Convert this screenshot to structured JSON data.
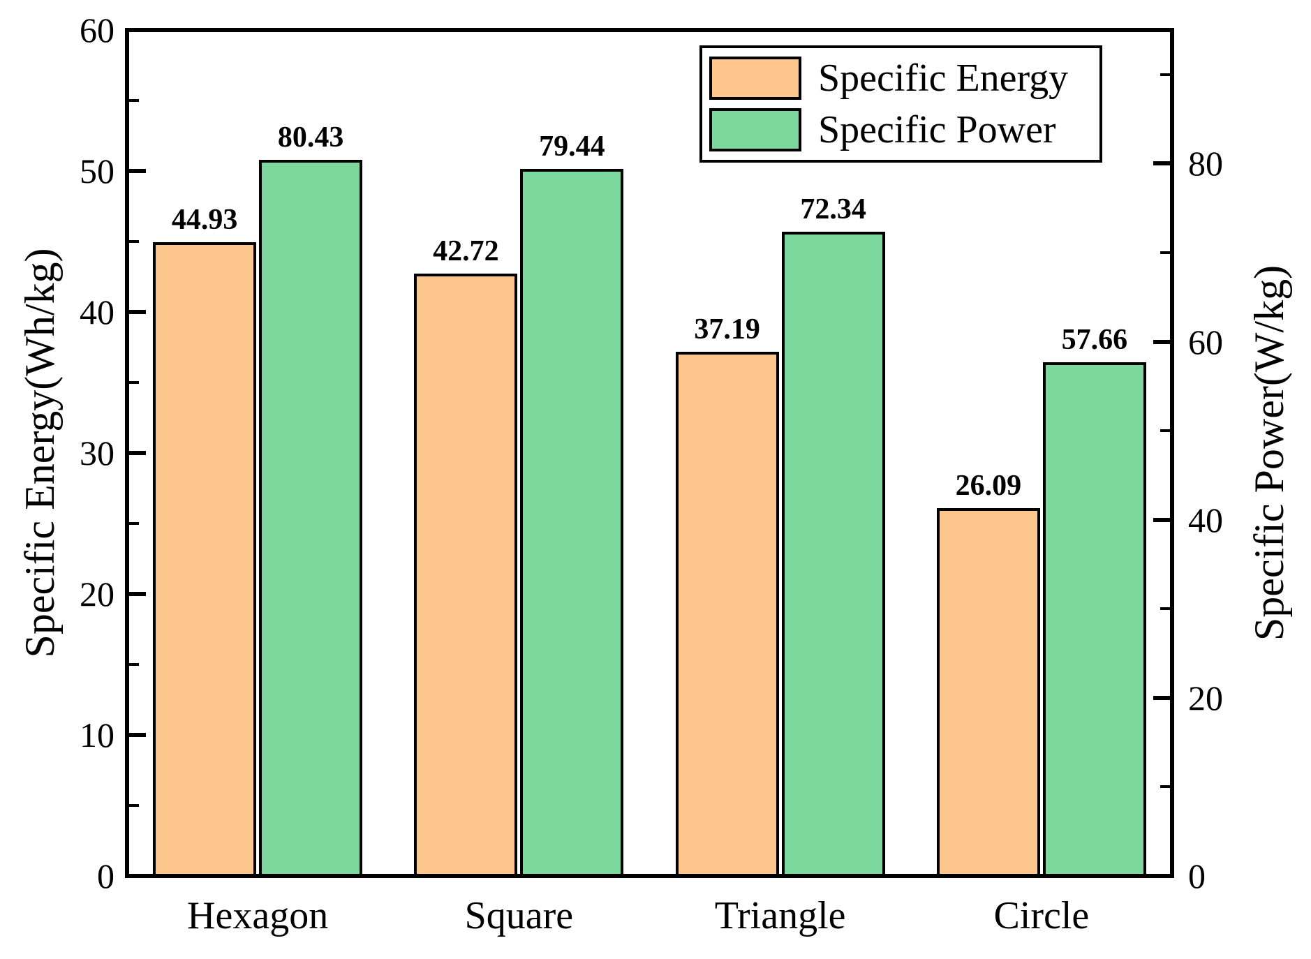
{
  "chart_data": {
    "type": "bar",
    "title": "",
    "categories": [
      "Hexagon",
      "Square",
      "Triangle",
      "Circle"
    ],
    "series": [
      {
        "name": "Specific Energy",
        "axis": "left",
        "color": "#FDC68D",
        "values": [
          44.93,
          42.72,
          37.19,
          26.09
        ]
      },
      {
        "name": "Specific Power",
        "axis": "right",
        "color": "#7CD89D",
        "values": [
          80.43,
          79.44,
          72.34,
          57.66
        ]
      }
    ],
    "left_axis": {
      "label": "Specific Energy(Wh/kg)",
      "min": 0,
      "max": 60,
      "major_ticks": [
        0,
        10,
        20,
        30,
        40,
        50,
        60
      ],
      "minor_ticks": [
        5,
        15,
        25,
        35,
        45,
        55
      ]
    },
    "right_axis": {
      "label": "Specific Power(W/kg)",
      "min": 0,
      "max": 95,
      "major_ticks": [
        0,
        20,
        40,
        60,
        80
      ],
      "minor_ticks": [
        10,
        30,
        50,
        70,
        90
      ]
    },
    "bar_edge_color": "#000000",
    "value_labels_shown": true,
    "grid": false,
    "legend": {
      "position": "top-right-inside",
      "entries": [
        "Specific Energy",
        "Specific Power"
      ]
    }
  }
}
